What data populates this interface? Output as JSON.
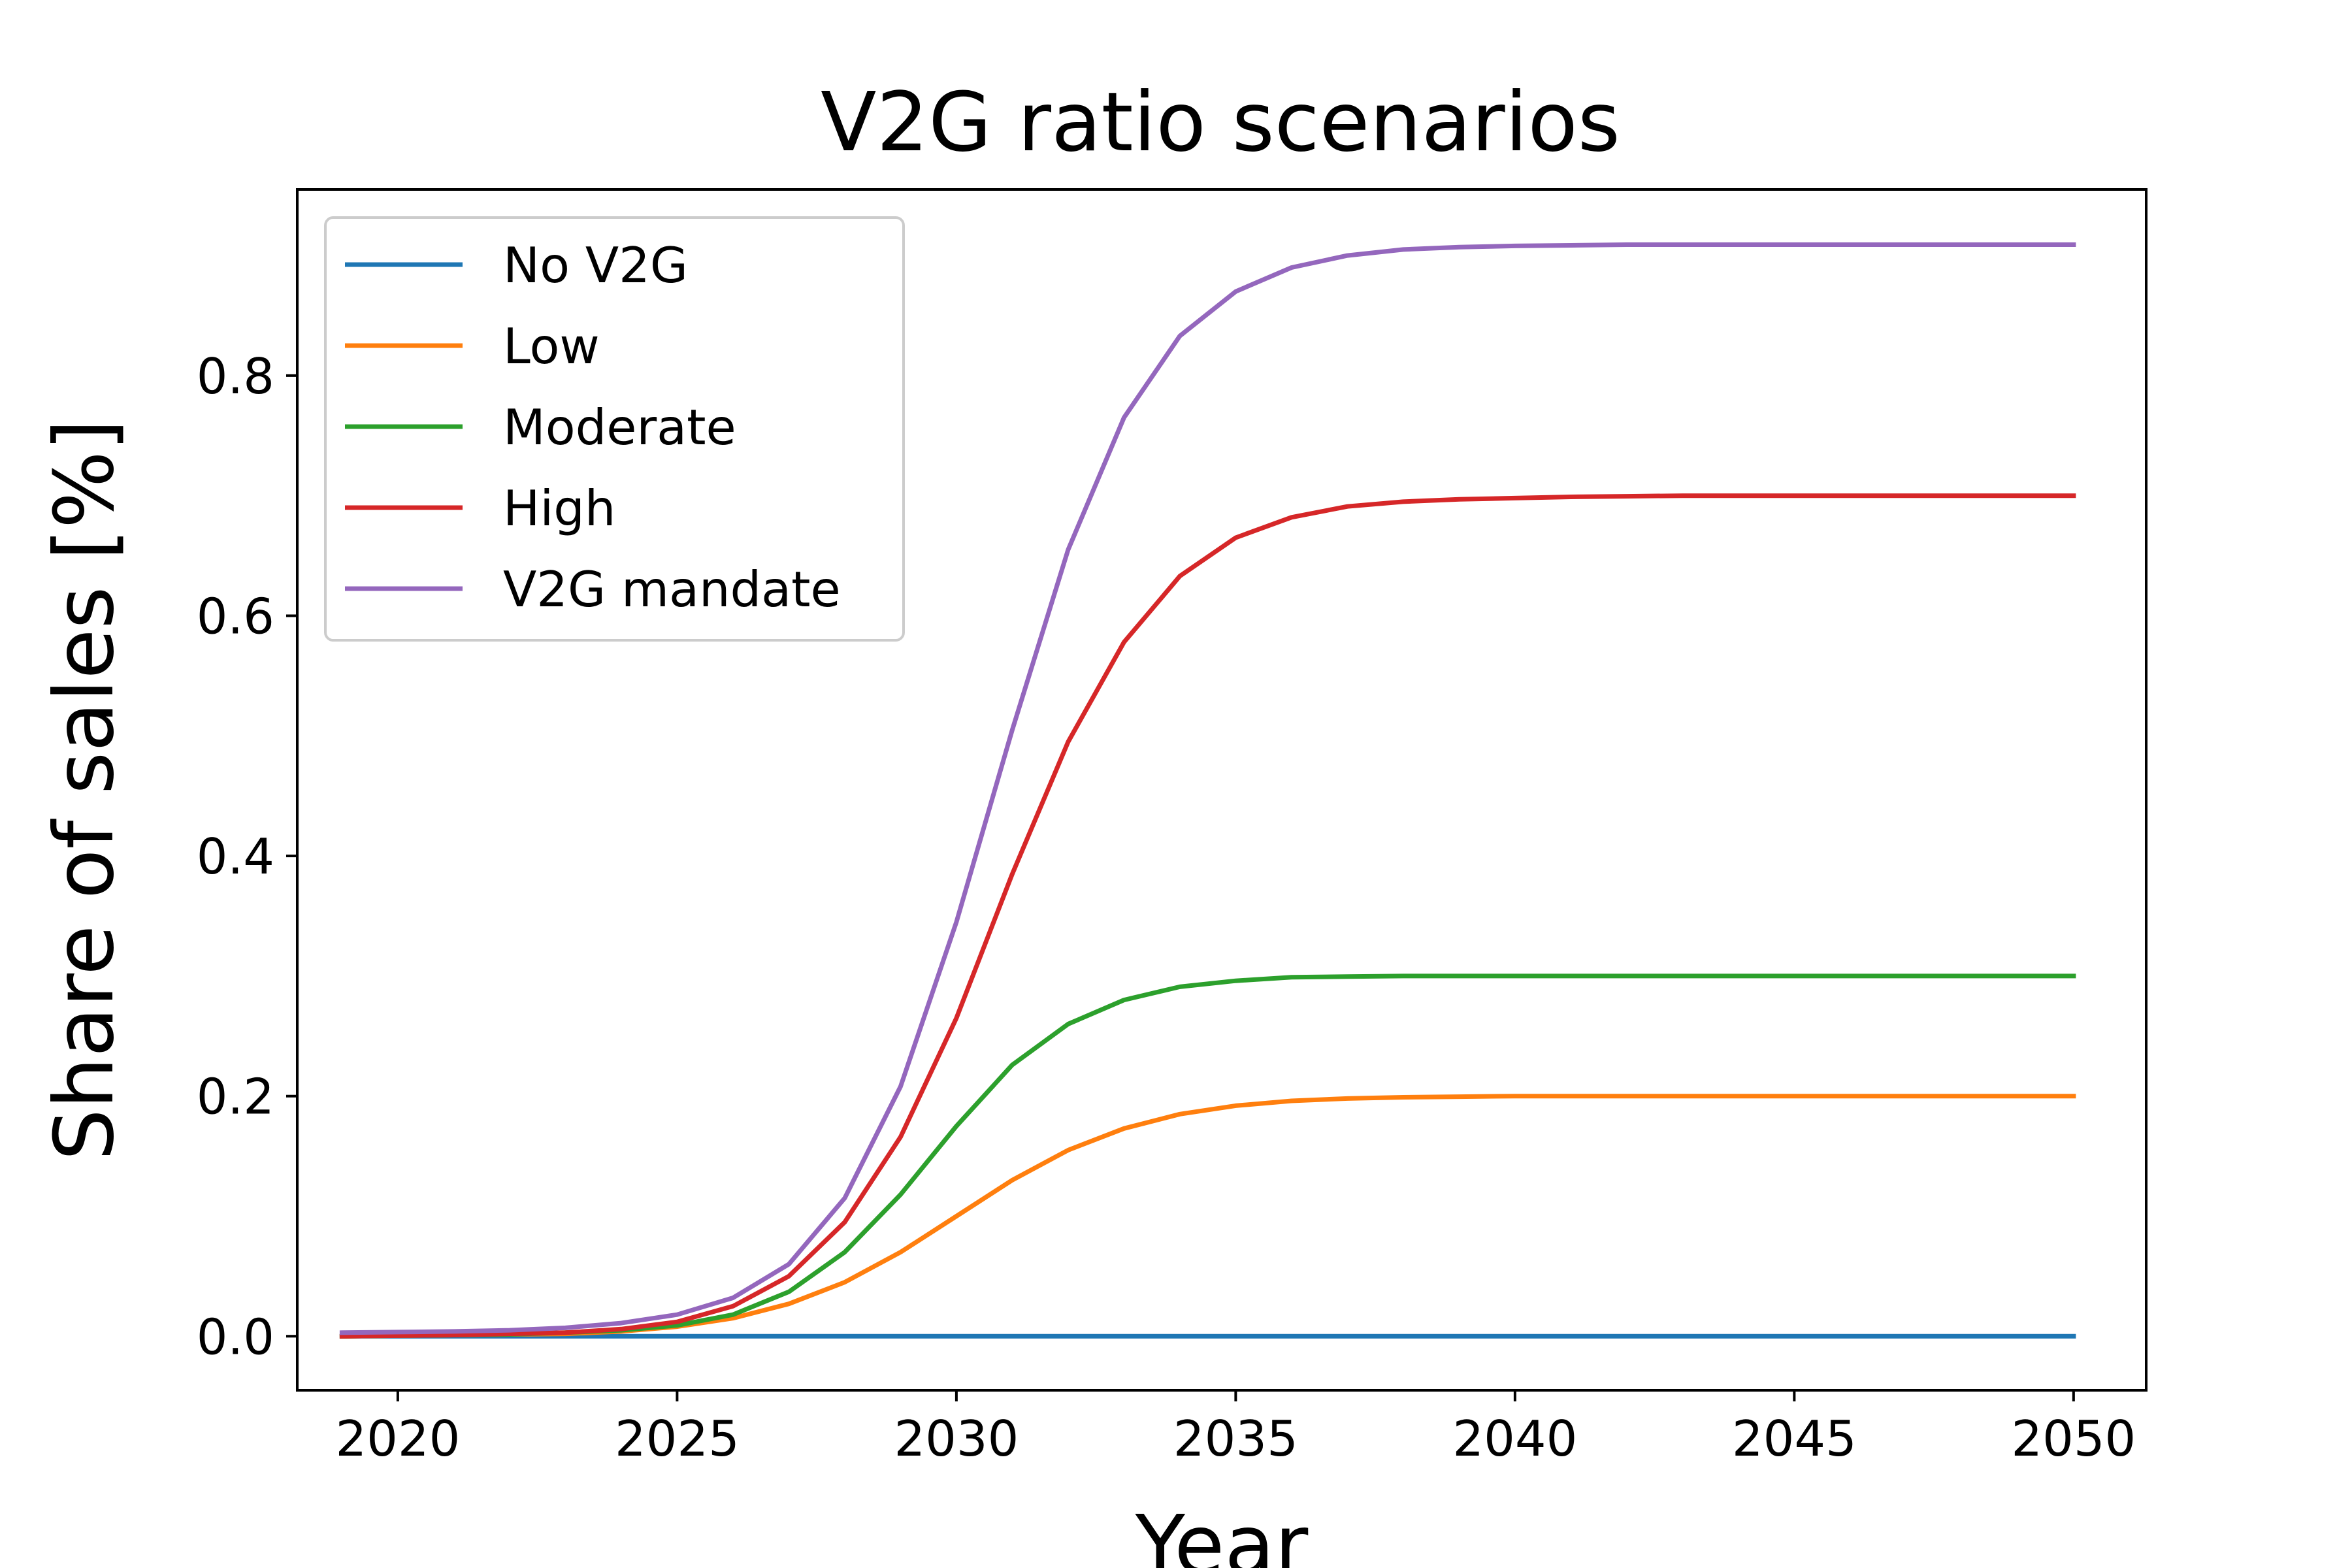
{
  "chart_data": {
    "type": "line",
    "title": "V2G ratio scenarios",
    "xlabel": "Year",
    "ylabel": "Share of sales [%]",
    "xlim": [
      2018.2,
      2051.3
    ],
    "ylim": [
      -0.045,
      0.955
    ],
    "xticks": [
      2020,
      2025,
      2030,
      2035,
      2040,
      2045,
      2050
    ],
    "xtick_labels": [
      "2020",
      "2025",
      "2030",
      "2035",
      "2040",
      "2045",
      "2050"
    ],
    "yticks": [
      0.0,
      0.2,
      0.4,
      0.6,
      0.8
    ],
    "ytick_labels": [
      "0.0",
      "0.2",
      "0.4",
      "0.6",
      "0.8"
    ],
    "grid": false,
    "legend": "top-left",
    "x": [
      2019,
      2020,
      2021,
      2022,
      2023,
      2024,
      2025,
      2026,
      2027,
      2028,
      2029,
      2030,
      2031,
      2032,
      2033,
      2034,
      2035,
      2036,
      2037,
      2038,
      2039,
      2040,
      2041,
      2042,
      2043,
      2044,
      2045,
      2046,
      2047,
      2048,
      2049,
      2050
    ],
    "series": [
      {
        "name": "No V2G",
        "color": "#1f77b4",
        "values": [
          0,
          0,
          0,
          0,
          0,
          0,
          0,
          0,
          0,
          0,
          0,
          0,
          0,
          0,
          0,
          0,
          0,
          0,
          0,
          0,
          0,
          0,
          0,
          0,
          0,
          0,
          0,
          0,
          0,
          0,
          0,
          0
        ]
      },
      {
        "name": "Low",
        "color": "#ff7f0e",
        "values": [
          0.0,
          0.0005,
          0.001,
          0.0015,
          0.002,
          0.004,
          0.008,
          0.015,
          0.027,
          0.045,
          0.07,
          0.1,
          0.13,
          0.155,
          0.173,
          0.185,
          0.192,
          0.196,
          0.198,
          0.199,
          0.1995,
          0.2,
          0.2,
          0.2,
          0.2,
          0.2,
          0.2,
          0.2,
          0.2,
          0.2,
          0.2,
          0.2
        ]
      },
      {
        "name": "Moderate",
        "color": "#2ca02c",
        "values": [
          0.0,
          0.0005,
          0.001,
          0.0015,
          0.003,
          0.005,
          0.009,
          0.018,
          0.037,
          0.07,
          0.118,
          0.175,
          0.226,
          0.26,
          0.28,
          0.291,
          0.296,
          0.299,
          0.2995,
          0.3,
          0.3,
          0.3,
          0.3,
          0.3,
          0.3,
          0.3,
          0.3,
          0.3,
          0.3,
          0.3,
          0.3,
          0.3
        ]
      },
      {
        "name": "High",
        "color": "#d62728",
        "values": [
          0.0,
          0.0005,
          0.001,
          0.002,
          0.003,
          0.006,
          0.012,
          0.025,
          0.05,
          0.095,
          0.166,
          0.265,
          0.385,
          0.495,
          0.578,
          0.633,
          0.665,
          0.682,
          0.691,
          0.695,
          0.697,
          0.698,
          0.699,
          0.6995,
          0.7,
          0.7,
          0.7,
          0.7,
          0.7,
          0.7,
          0.7,
          0.7
        ]
      },
      {
        "name": "V2G mandate",
        "color": "#9467bd",
        "values": [
          0.003,
          0.0035,
          0.004,
          0.005,
          0.007,
          0.011,
          0.018,
          0.032,
          0.06,
          0.115,
          0.208,
          0.345,
          0.505,
          0.655,
          0.765,
          0.833,
          0.87,
          0.89,
          0.9,
          0.905,
          0.907,
          0.908,
          0.9085,
          0.909,
          0.909,
          0.909,
          0.909,
          0.909,
          0.909,
          0.909,
          0.909,
          0.909
        ]
      }
    ]
  }
}
